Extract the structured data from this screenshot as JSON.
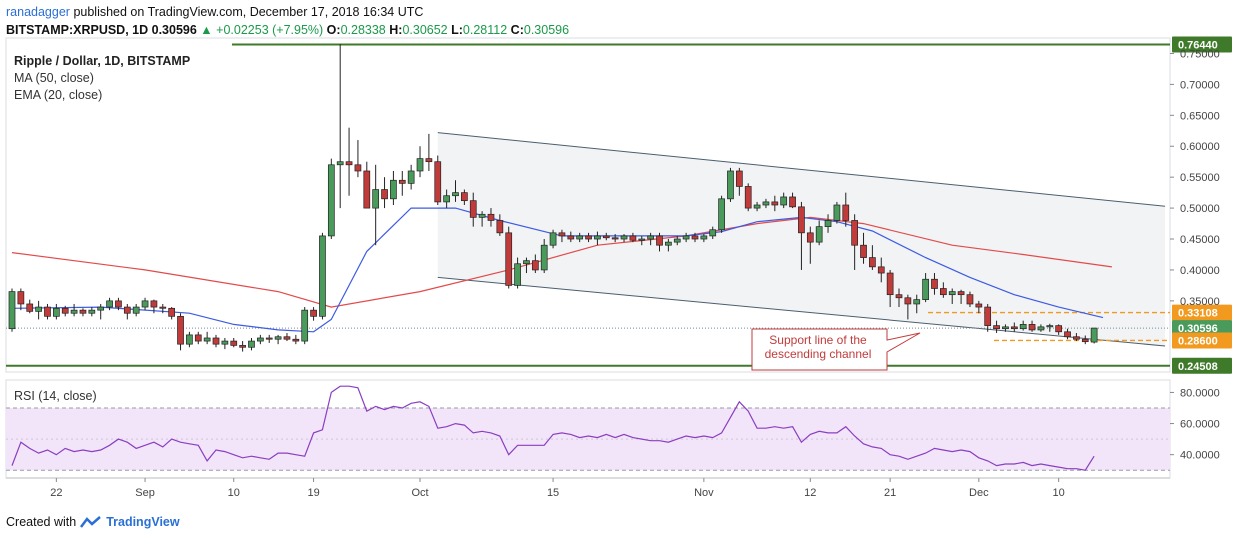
{
  "header": {
    "line1": {
      "author": "ranadagger",
      "published": "published on TradingView.com, December 17, 2018 16:34 UTC"
    },
    "line2": {
      "symbol": "BITSTAMP:XRPUSD, 1D",
      "last": "0.30596",
      "change": "+0.02253 (+7.95%)",
      "o_label": "O:",
      "o": "0.28338",
      "h_label": "H:",
      "h": "0.30652",
      "l_label": "L:",
      "l": "0.28112",
      "c_label": "C:",
      "c": "0.30596"
    }
  },
  "legend": {
    "title": "Ripple / Dollar, 1D, BITSTAMP",
    "ma": "MA (50, close)",
    "ema": "EMA (20, close)",
    "rsi": "RSI (14, close)"
  },
  "callout": {
    "line1": "Support line of the",
    "line2": "descending channel"
  },
  "footer": {
    "created": "Created with",
    "brand": "TradingView"
  },
  "colors": {
    "up": "#4a9a5c",
    "down": "#c23b3b",
    "ma": "#e34a4a",
    "ema": "#3d5be3",
    "channel": "#4a5e6e",
    "hline": "#3f7a2a",
    "orange": "#f29a1f",
    "rsi": "#8a3fc0",
    "rsi_band": "#f2e4f9",
    "price_tag_green": "#3f7a2a",
    "price_tag_orange": "#f29a1f",
    "price_tag_current": "#4a9a5c"
  },
  "chart_data": {
    "type": "candlestick",
    "symbol": "XRPUSD",
    "interval": "1D",
    "y_axis": {
      "ylim": [
        0.235,
        0.775
      ],
      "ticks": [
        "0.75000",
        "0.70000",
        "0.65000",
        "0.60000",
        "0.55000",
        "0.50000",
        "0.45000",
        "0.40000",
        "0.35000"
      ]
    },
    "x_axis": {
      "ticks": [
        {
          "label": "22",
          "bar": 5
        },
        {
          "label": "Sep",
          "bar": 15
        },
        {
          "label": "10",
          "bar": 25
        },
        {
          "label": "19",
          "bar": 34
        },
        {
          "label": "Oct",
          "bar": 46
        },
        {
          "label": "15",
          "bar": 61
        },
        {
          "label": "Nov",
          "bar": 78
        },
        {
          "label": "12",
          "bar": 90
        },
        {
          "label": "21",
          "bar": 99
        },
        {
          "label": "Dec",
          "bar": 109
        },
        {
          "label": "10",
          "bar": 118
        }
      ]
    },
    "candles": [
      [
        0.305,
        0.37,
        0.3,
        0.365
      ],
      [
        0.365,
        0.37,
        0.335,
        0.345
      ],
      [
        0.345,
        0.352,
        0.33,
        0.333
      ],
      [
        0.333,
        0.35,
        0.32,
        0.34
      ],
      [
        0.34,
        0.345,
        0.32,
        0.325
      ],
      [
        0.325,
        0.345,
        0.32,
        0.338
      ],
      [
        0.338,
        0.342,
        0.325,
        0.33
      ],
      [
        0.33,
        0.345,
        0.325,
        0.335
      ],
      [
        0.335,
        0.338,
        0.325,
        0.33
      ],
      [
        0.33,
        0.34,
        0.325,
        0.335
      ],
      [
        0.335,
        0.345,
        0.32,
        0.34
      ],
      [
        0.34,
        0.355,
        0.335,
        0.35
      ],
      [
        0.35,
        0.355,
        0.335,
        0.34
      ],
      [
        0.34,
        0.345,
        0.32,
        0.33
      ],
      [
        0.33,
        0.345,
        0.325,
        0.34
      ],
      [
        0.34,
        0.355,
        0.335,
        0.35
      ],
      [
        0.35,
        0.352,
        0.33,
        0.34
      ],
      [
        0.34,
        0.345,
        0.33,
        0.338
      ],
      [
        0.338,
        0.34,
        0.32,
        0.325
      ],
      [
        0.325,
        0.33,
        0.27,
        0.28
      ],
      [
        0.28,
        0.3,
        0.275,
        0.295
      ],
      [
        0.295,
        0.3,
        0.28,
        0.285
      ],
      [
        0.285,
        0.3,
        0.28,
        0.29
      ],
      [
        0.29,
        0.295,
        0.275,
        0.28
      ],
      [
        0.28,
        0.29,
        0.272,
        0.285
      ],
      [
        0.285,
        0.29,
        0.275,
        0.278
      ],
      [
        0.278,
        0.285,
        0.268,
        0.275
      ],
      [
        0.275,
        0.29,
        0.27,
        0.285
      ],
      [
        0.285,
        0.295,
        0.28,
        0.29
      ],
      [
        0.29,
        0.295,
        0.282,
        0.288
      ],
      [
        0.288,
        0.295,
        0.28,
        0.292
      ],
      [
        0.292,
        0.298,
        0.285,
        0.288
      ],
      [
        0.288,
        0.295,
        0.28,
        0.285
      ],
      [
        0.285,
        0.34,
        0.28,
        0.335
      ],
      [
        0.335,
        0.34,
        0.318,
        0.325
      ],
      [
        0.325,
        0.46,
        0.32,
        0.455
      ],
      [
        0.455,
        0.58,
        0.45,
        0.57
      ],
      [
        0.57,
        0.765,
        0.5,
        0.575
      ],
      [
        0.575,
        0.63,
        0.52,
        0.57
      ],
      [
        0.57,
        0.61,
        0.55,
        0.56
      ],
      [
        0.56,
        0.575,
        0.5,
        0.5
      ],
      [
        0.5,
        0.57,
        0.44,
        0.53
      ],
      [
        0.53,
        0.55,
        0.5,
        0.515
      ],
      [
        0.515,
        0.56,
        0.505,
        0.545
      ],
      [
        0.545,
        0.56,
        0.52,
        0.54
      ],
      [
        0.54,
        0.57,
        0.53,
        0.56
      ],
      [
        0.56,
        0.6,
        0.55,
        0.58
      ],
      [
        0.58,
        0.62,
        0.56,
        0.575
      ],
      [
        0.575,
        0.585,
        0.505,
        0.51
      ],
      [
        0.51,
        0.53,
        0.5,
        0.52
      ],
      [
        0.52,
        0.545,
        0.51,
        0.525
      ],
      [
        0.525,
        0.53,
        0.505,
        0.512
      ],
      [
        0.512,
        0.525,
        0.47,
        0.485
      ],
      [
        0.485,
        0.495,
        0.47,
        0.49
      ],
      [
        0.49,
        0.5,
        0.47,
        0.48
      ],
      [
        0.48,
        0.49,
        0.455,
        0.46
      ],
      [
        0.46,
        0.47,
        0.37,
        0.375
      ],
      [
        0.375,
        0.42,
        0.37,
        0.41
      ],
      [
        0.41,
        0.42,
        0.395,
        0.415
      ],
      [
        0.415,
        0.425,
        0.395,
        0.4
      ],
      [
        0.4,
        0.45,
        0.395,
        0.44
      ],
      [
        0.44,
        0.465,
        0.435,
        0.46
      ],
      [
        0.46,
        0.465,
        0.445,
        0.455
      ],
      [
        0.455,
        0.462,
        0.445,
        0.45
      ],
      [
        0.45,
        0.46,
        0.445,
        0.455
      ],
      [
        0.455,
        0.46,
        0.445,
        0.45
      ],
      [
        0.45,
        0.462,
        0.44,
        0.455
      ],
      [
        0.455,
        0.46,
        0.448,
        0.452
      ],
      [
        0.452,
        0.458,
        0.445,
        0.45
      ],
      [
        0.45,
        0.458,
        0.445,
        0.455
      ],
      [
        0.455,
        0.46,
        0.445,
        0.448
      ],
      [
        0.448,
        0.455,
        0.44,
        0.45
      ],
      [
        0.45,
        0.46,
        0.44,
        0.455
      ],
      [
        0.455,
        0.46,
        0.43,
        0.44
      ],
      [
        0.44,
        0.45,
        0.43,
        0.445
      ],
      [
        0.445,
        0.455,
        0.44,
        0.45
      ],
      [
        0.45,
        0.46,
        0.445,
        0.455
      ],
      [
        0.455,
        0.46,
        0.445,
        0.45
      ],
      [
        0.45,
        0.458,
        0.445,
        0.455
      ],
      [
        0.455,
        0.47,
        0.45,
        0.465
      ],
      [
        0.465,
        0.52,
        0.46,
        0.515
      ],
      [
        0.515,
        0.565,
        0.51,
        0.56
      ],
      [
        0.56,
        0.565,
        0.52,
        0.535
      ],
      [
        0.535,
        0.54,
        0.495,
        0.5
      ],
      [
        0.5,
        0.51,
        0.495,
        0.505
      ],
      [
        0.505,
        0.515,
        0.5,
        0.51
      ],
      [
        0.51,
        0.52,
        0.495,
        0.505
      ],
      [
        0.505,
        0.525,
        0.5,
        0.518
      ],
      [
        0.518,
        0.525,
        0.5,
        0.502
      ],
      [
        0.502,
        0.51,
        0.4,
        0.46
      ],
      [
        0.46,
        0.47,
        0.41,
        0.445
      ],
      [
        0.445,
        0.48,
        0.44,
        0.47
      ],
      [
        0.47,
        0.49,
        0.46,
        0.48
      ],
      [
        0.48,
        0.51,
        0.475,
        0.505
      ],
      [
        0.505,
        0.525,
        0.47,
        0.48
      ],
      [
        0.48,
        0.49,
        0.4,
        0.44
      ],
      [
        0.44,
        0.46,
        0.41,
        0.42
      ],
      [
        0.42,
        0.44,
        0.4,
        0.405
      ],
      [
        0.405,
        0.42,
        0.38,
        0.395
      ],
      [
        0.395,
        0.4,
        0.34,
        0.36
      ],
      [
        0.36,
        0.37,
        0.34,
        0.355
      ],
      [
        0.355,
        0.36,
        0.32,
        0.345
      ],
      [
        0.345,
        0.36,
        0.33,
        0.352
      ],
      [
        0.352,
        0.395,
        0.348,
        0.385
      ],
      [
        0.385,
        0.395,
        0.36,
        0.37
      ],
      [
        0.37,
        0.38,
        0.355,
        0.36
      ],
      [
        0.36,
        0.37,
        0.345,
        0.365
      ],
      [
        0.365,
        0.368,
        0.345,
        0.36
      ],
      [
        0.36,
        0.365,
        0.34,
        0.345
      ],
      [
        0.345,
        0.35,
        0.33,
        0.34
      ],
      [
        0.34,
        0.345,
        0.3,
        0.31
      ],
      [
        0.31,
        0.318,
        0.298,
        0.305
      ],
      [
        0.305,
        0.312,
        0.3,
        0.308
      ],
      [
        0.308,
        0.315,
        0.3,
        0.305
      ],
      [
        0.305,
        0.318,
        0.302,
        0.312
      ],
      [
        0.312,
        0.318,
        0.3,
        0.303
      ],
      [
        0.303,
        0.312,
        0.3,
        0.308
      ],
      [
        0.308,
        0.313,
        0.3,
        0.31
      ],
      [
        0.31,
        0.312,
        0.295,
        0.3
      ],
      [
        0.3,
        0.305,
        0.288,
        0.292
      ],
      [
        0.292,
        0.298,
        0.285,
        0.288
      ],
      [
        0.288,
        0.294,
        0.28,
        0.284
      ],
      [
        0.28338,
        0.30652,
        0.28112,
        0.30596
      ]
    ],
    "ma50": [
      [
        0,
        0.428
      ],
      [
        15,
        0.4
      ],
      [
        30,
        0.365
      ],
      [
        36,
        0.34
      ],
      [
        46,
        0.365
      ],
      [
        56,
        0.4
      ],
      [
        66,
        0.44
      ],
      [
        76,
        0.455
      ],
      [
        84,
        0.475
      ],
      [
        90,
        0.485
      ],
      [
        96,
        0.475
      ],
      [
        106,
        0.44
      ],
      [
        114,
        0.425
      ],
      [
        124,
        0.405
      ]
    ],
    "ema20": [
      [
        0,
        0.338
      ],
      [
        10,
        0.34
      ],
      [
        20,
        0.33
      ],
      [
        25,
        0.312
      ],
      [
        30,
        0.303
      ],
      [
        34,
        0.3
      ],
      [
        36,
        0.32
      ],
      [
        40,
        0.43
      ],
      [
        45,
        0.5
      ],
      [
        50,
        0.5
      ],
      [
        55,
        0.48
      ],
      [
        62,
        0.455
      ],
      [
        70,
        0.455
      ],
      [
        76,
        0.455
      ],
      [
        80,
        0.462
      ],
      [
        84,
        0.478
      ],
      [
        89,
        0.485
      ],
      [
        93,
        0.478
      ],
      [
        97,
        0.463
      ],
      [
        103,
        0.42
      ],
      [
        108,
        0.388
      ],
      [
        113,
        0.36
      ],
      [
        118,
        0.34
      ],
      [
        123,
        0.323
      ]
    ],
    "channel": {
      "upper": [
        [
          48,
          0.622
        ],
        [
          130,
          0.503
        ]
      ],
      "lower": [
        [
          48,
          0.388
        ],
        [
          130,
          0.277
        ]
      ]
    },
    "lines": [
      {
        "label": "0.76440",
        "value": 0.7644,
        "style": "solid-green"
      },
      {
        "label": "0.33108",
        "value": 0.33108,
        "style": "dashed-orange"
      },
      {
        "label": "0.30596",
        "value": 0.30596,
        "style": "dotted-current"
      },
      {
        "label": "0.28600",
        "value": 0.286,
        "style": "dashed-orange"
      },
      {
        "label": "0.24508",
        "value": 0.24508,
        "style": "solid-green"
      }
    ],
    "rsi": {
      "ylim": [
        25,
        88
      ],
      "ticks": [
        "80.0000",
        "60.0000",
        "40.0000"
      ],
      "band": [
        30,
        70
      ],
      "values": [
        33,
        48,
        44,
        41,
        43,
        40,
        44,
        42,
        43,
        42,
        43,
        46,
        50,
        48,
        44,
        46,
        48,
        45,
        50,
        48,
        47,
        46,
        36,
        43,
        42,
        40,
        38,
        39,
        38,
        37,
        41,
        41,
        40,
        39,
        54,
        56,
        80,
        84,
        84,
        83,
        68,
        71,
        69,
        71,
        70,
        73,
        74,
        71,
        57,
        58,
        60,
        59,
        54,
        55,
        54,
        52,
        40,
        46,
        46,
        46,
        46,
        53,
        54,
        53,
        51,
        52,
        51,
        53,
        51,
        53,
        51,
        50,
        49,
        49,
        48,
        50,
        52,
        51,
        52,
        51,
        54,
        64,
        74,
        68,
        57,
        57,
        58,
        57,
        58,
        48,
        53,
        55,
        54,
        54,
        58,
        52,
        47,
        45,
        44,
        40,
        39,
        37,
        39,
        41,
        44,
        43,
        42,
        43,
        42,
        38,
        36,
        33,
        34,
        34,
        35,
        33,
        34,
        33,
        32,
        31,
        31,
        30,
        39
      ]
    }
  }
}
